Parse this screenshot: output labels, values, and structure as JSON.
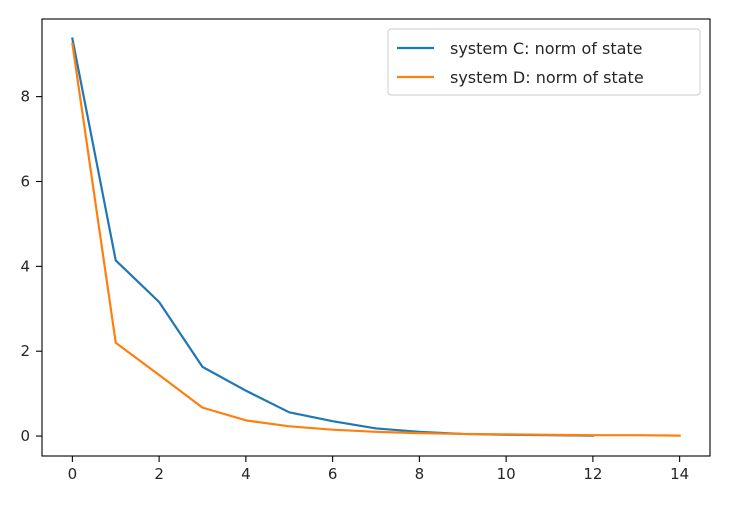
{
  "chart_data": {
    "type": "line",
    "title": "",
    "xlabel": "",
    "ylabel": "",
    "xlim": [
      -0.7,
      14.7
    ],
    "ylim": [
      -0.47,
      9.83
    ],
    "xticks": [
      0,
      2,
      4,
      6,
      8,
      10,
      12,
      14
    ],
    "yticks": [
      0,
      2,
      4,
      6,
      8
    ],
    "grid": false,
    "legend": "top-right",
    "series": [
      {
        "name": "system C: norm of state",
        "color": "#1f77b4",
        "x": [
          0,
          1,
          2,
          3,
          4,
          5,
          6,
          7,
          8,
          9,
          10,
          11,
          12
        ],
        "y": [
          9.37,
          4.14,
          3.16,
          1.63,
          1.07,
          0.56,
          0.35,
          0.18,
          0.1,
          0.05,
          0.03,
          0.02,
          0.01
        ]
      },
      {
        "name": "system D: norm of state",
        "color": "#ff7f0e",
        "x": [
          0,
          1,
          2,
          3,
          4,
          5,
          6,
          7,
          8,
          9,
          10,
          11,
          12,
          13,
          14
        ],
        "y": [
          9.25,
          2.2,
          1.44,
          0.67,
          0.37,
          0.23,
          0.15,
          0.1,
          0.07,
          0.05,
          0.04,
          0.03,
          0.02,
          0.02,
          0.01
        ]
      }
    ]
  }
}
